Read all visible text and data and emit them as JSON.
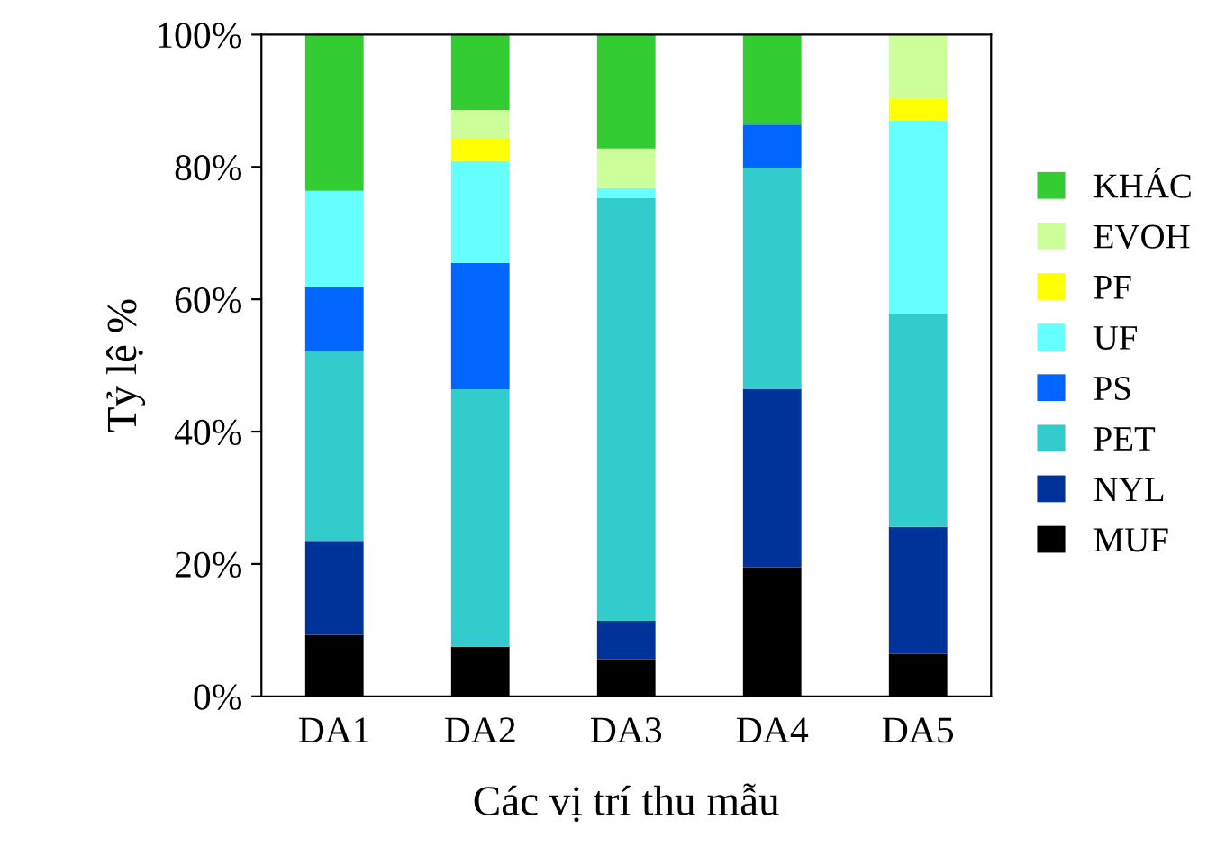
{
  "chart_data": {
    "type": "bar",
    "stacked": true,
    "xlabel": "Các vị trí thu mẫu",
    "ylabel": "Tỷ lệ %",
    "categories": [
      "DA1",
      "DA2",
      "DA3",
      "DA4",
      "DA5"
    ],
    "series": [
      {
        "name": "MUF",
        "color": "#000000",
        "values": [
          9.3,
          7.5,
          5.6,
          19.5,
          6.4
        ]
      },
      {
        "name": "NYL",
        "color": "#003399",
        "values": [
          14.2,
          0,
          5.8,
          26.9,
          19.2
        ]
      },
      {
        "name": "PET",
        "color": "#33cccc",
        "values": [
          28.7,
          38.9,
          63.9,
          33.5,
          32.3
        ]
      },
      {
        "name": "PS",
        "color": "#0066ff",
        "values": [
          9.6,
          19.1,
          0,
          6.5,
          0
        ]
      },
      {
        "name": "UF",
        "color": "#66ffff",
        "values": [
          14.6,
          15.4,
          1.5,
          0,
          29.1
        ]
      },
      {
        "name": "PF",
        "color": "#ffff00",
        "values": [
          0,
          3.5,
          0,
          0,
          3.3
        ]
      },
      {
        "name": "EVOH",
        "color": "#ccff99",
        "values": [
          0,
          4.2,
          6.0,
          0,
          9.7
        ]
      },
      {
        "name": "KHÁC",
        "color": "#33cc33",
        "values": [
          23.6,
          11.4,
          17.2,
          13.6,
          0
        ]
      }
    ],
    "ylim": [
      0,
      100
    ],
    "yticks": [
      {
        "value": 0,
        "label": "0%"
      },
      {
        "value": 20,
        "label": "20%"
      },
      {
        "value": 40,
        "label": "40%"
      },
      {
        "value": 60,
        "label": "60%"
      },
      {
        "value": 80,
        "label": "80%"
      },
      {
        "value": 100,
        "label": "100%"
      }
    ],
    "legend": "right",
    "grid": false
  }
}
